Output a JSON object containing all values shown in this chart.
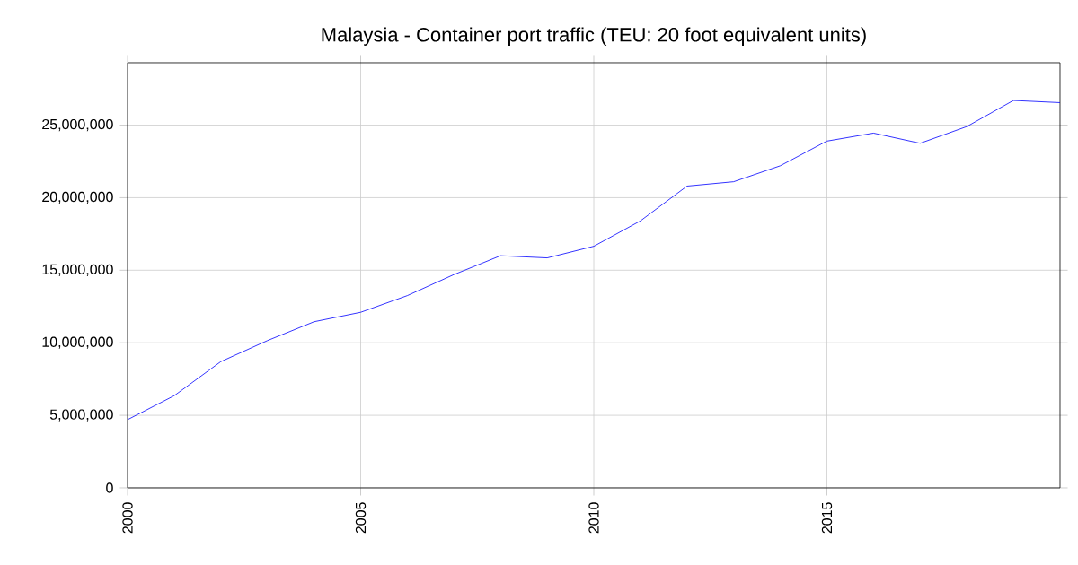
{
  "chart_data": {
    "type": "line",
    "title": "Malaysia - Container port traffic (TEU: 20 foot equivalent units)",
    "x": [
      2000,
      2001,
      2002,
      2003,
      2004,
      2005,
      2006,
      2007,
      2008,
      2009,
      2010,
      2011,
      2012,
      2013,
      2014,
      2015,
      2016,
      2017,
      2018,
      2019,
      2020
    ],
    "values": [
      4700000,
      6350000,
      8700000,
      10150000,
      11450000,
      12100000,
      13250000,
      14700000,
      16000000,
      15850000,
      16650000,
      18400000,
      20800000,
      21100000,
      22200000,
      23900000,
      24450000,
      23750000,
      24900000,
      26700000,
      26550000
    ],
    "color": "#0000ff",
    "xlim": [
      2000,
      2020
    ],
    "ylim": [
      0,
      29300000
    ],
    "xticks": [
      2000,
      2005,
      2010,
      2015
    ],
    "yticks": [
      0,
      {
        "value": 5000000,
        "label": "5,000,000"
      },
      {
        "value": 10000000,
        "label": "10,000,000"
      },
      {
        "value": 15000000,
        "label": "15,000,000"
      },
      {
        "value": 20000000,
        "label": "20,000,000"
      },
      {
        "value": 25000000,
        "label": "25,000,000"
      }
    ],
    "grid": true,
    "marker": "none",
    "line_style": "solid"
  }
}
